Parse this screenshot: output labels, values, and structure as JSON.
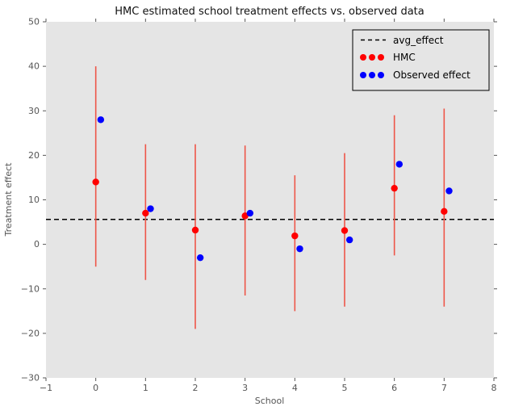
{
  "figure": {
    "title": "HMC estimated school treatment effects vs. observed data",
    "xlabel": "School",
    "ylabel": "Treatment effect"
  },
  "legend": {
    "position": "upper right",
    "items": [
      {
        "label": "avg_effect",
        "marker": "dashed-line",
        "color": "#000000"
      },
      {
        "label": "HMC",
        "marker": "dots",
        "color": "#ff0000"
      },
      {
        "label": "Observed effect",
        "marker": "dots",
        "color": "#0000ff"
      }
    ]
  },
  "colors": {
    "figure_bg": "#ffffff",
    "plot_bg": "#e5e5e5",
    "errorbar": "#ee5548",
    "hmc_dot": "#ff0000",
    "observed_dot": "#0000ff",
    "avg_line": "#000000",
    "tick": "#555555"
  },
  "chart_data": {
    "type": "scatter",
    "title": "HMC estimated school treatment effects vs. observed data",
    "xlabel": "School",
    "ylabel": "Treatment effect",
    "xlim": [
      -1,
      8
    ],
    "ylim": [
      -30,
      50
    ],
    "xticks": [
      -1,
      0,
      1,
      2,
      3,
      4,
      5,
      6,
      7,
      8
    ],
    "yticks": [
      -30,
      -20,
      -10,
      0,
      10,
      20,
      30,
      40,
      50
    ],
    "grid": false,
    "legend_position": "upper right",
    "avg_effect": 5.6,
    "categories": [
      0,
      1,
      2,
      3,
      4,
      5,
      6,
      7
    ],
    "series": [
      {
        "name": "HMC",
        "type": "scatter-with-errorbars",
        "x": [
          0,
          1,
          2,
          3,
          4,
          5,
          6,
          7
        ],
        "y": [
          14,
          7,
          3.2,
          6.4,
          1.9,
          3.1,
          12.6,
          7.4
        ],
        "err_low": [
          -5,
          -8,
          -19,
          -11.5,
          -15,
          -14,
          -2.5,
          -14
        ],
        "err_high": [
          40,
          22.5,
          22.5,
          22.2,
          15.5,
          20.5,
          29,
          30.5
        ]
      },
      {
        "name": "Observed effect",
        "type": "scatter",
        "x": [
          0.1,
          1.1,
          2.1,
          3.1,
          4.1,
          5.1,
          6.1,
          7.1
        ],
        "y": [
          28,
          8,
          -3,
          7,
          -1,
          1,
          18,
          12
        ]
      }
    ]
  }
}
